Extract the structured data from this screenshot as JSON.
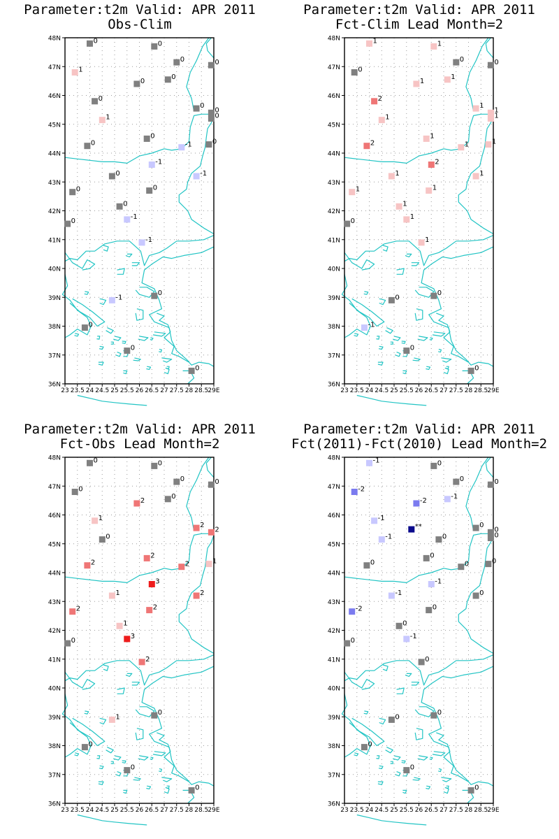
{
  "colors": {
    "coast": "#21c4c4",
    "grid": "#9a9a9a",
    "zero": "#808080",
    "neg1": "#c8c8ff",
    "neg2": "#7b7bef",
    "neg3": "#0a0a8c",
    "pos1": "#f7c4c4",
    "pos2": "#ef7676",
    "pos3": "#ee1c1c"
  },
  "axes": {
    "lat_ticks": [
      "48N",
      "47N",
      "46N",
      "45N",
      "44N",
      "43N",
      "42N",
      "41N",
      "40N",
      "39N",
      "38N",
      "37N",
      "36N"
    ],
    "lon_ticks": [
      "23",
      "23.5",
      "24",
      "24.5",
      "25",
      "25.5",
      "26",
      "26.5",
      "27",
      "27.5",
      "28",
      "28.5",
      "29E"
    ],
    "lat_range": [
      36,
      48
    ],
    "lon_range": [
      23,
      29
    ]
  },
  "panels": [
    {
      "title1": "Parameter:t2m Valid: APR 2011",
      "title2": "Obs-Clim",
      "points": [
        [
          24.0,
          47.8,
          "0"
        ],
        [
          26.6,
          47.7,
          "0"
        ],
        [
          27.5,
          47.15,
          "0"
        ],
        [
          28.9,
          47.05,
          "0"
        ],
        [
          23.4,
          46.8,
          "1"
        ],
        [
          27.15,
          46.55,
          "0"
        ],
        [
          25.9,
          46.4,
          "0"
        ],
        [
          24.2,
          45.8,
          "0"
        ],
        [
          28.3,
          45.55,
          "0"
        ],
        [
          28.9,
          45.4,
          "0"
        ],
        [
          28.9,
          45.2,
          "0"
        ],
        [
          24.5,
          45.15,
          "1"
        ],
        [
          26.3,
          44.5,
          "0"
        ],
        [
          28.8,
          44.3,
          "0"
        ],
        [
          23.9,
          44.25,
          "0"
        ],
        [
          27.7,
          44.2,
          "-1"
        ],
        [
          26.5,
          43.6,
          "-1"
        ],
        [
          28.3,
          43.2,
          "-1"
        ],
        [
          24.9,
          43.2,
          "0"
        ],
        [
          23.3,
          42.65,
          "0"
        ],
        [
          26.4,
          42.7,
          "0"
        ],
        [
          25.2,
          42.15,
          "0"
        ],
        [
          25.5,
          41.7,
          "-1"
        ],
        [
          23.1,
          41.55,
          "0"
        ],
        [
          26.1,
          40.9,
          "-1"
        ],
        [
          24.9,
          38.9,
          "-1"
        ],
        [
          26.6,
          39.05,
          "0"
        ],
        [
          23.8,
          37.95,
          "0"
        ],
        [
          25.5,
          37.15,
          "0"
        ],
        [
          28.1,
          36.45,
          "0"
        ]
      ]
    },
    {
      "title1": "Parameter:t2m Valid: APR 2011",
      "title2": "Fct-Clim Lead Month=2",
      "points": [
        [
          24.0,
          47.8,
          "1"
        ],
        [
          26.6,
          47.7,
          "1"
        ],
        [
          27.5,
          47.15,
          "0"
        ],
        [
          28.9,
          47.05,
          "0"
        ],
        [
          23.4,
          46.8,
          "0"
        ],
        [
          27.15,
          46.55,
          "1"
        ],
        [
          25.9,
          46.4,
          "1"
        ],
        [
          24.2,
          45.8,
          "2"
        ],
        [
          28.3,
          45.55,
          "1"
        ],
        [
          28.9,
          45.4,
          "1"
        ],
        [
          28.9,
          45.2,
          "1"
        ],
        [
          24.5,
          45.15,
          "1"
        ],
        [
          26.3,
          44.5,
          "1"
        ],
        [
          28.8,
          44.3,
          "1"
        ],
        [
          23.9,
          44.25,
          "2"
        ],
        [
          27.7,
          44.2,
          "1"
        ],
        [
          26.5,
          43.6,
          "2"
        ],
        [
          28.3,
          43.2,
          "1"
        ],
        [
          24.9,
          43.2,
          "1"
        ],
        [
          23.3,
          42.65,
          "1"
        ],
        [
          26.4,
          42.7,
          "1"
        ],
        [
          25.2,
          42.15,
          "1"
        ],
        [
          25.5,
          41.7,
          "1"
        ],
        [
          23.1,
          41.55,
          "0"
        ],
        [
          26.1,
          40.9,
          "1"
        ],
        [
          24.9,
          38.9,
          "0"
        ],
        [
          26.6,
          39.05,
          "0"
        ],
        [
          23.8,
          37.95,
          "-1"
        ],
        [
          25.5,
          37.15,
          "0"
        ],
        [
          28.1,
          36.45,
          "0"
        ]
      ]
    },
    {
      "title1": "Parameter:t2m Valid: APR 2011",
      "title2": "Fct-Obs Lead Month=2",
      "points": [
        [
          24.0,
          47.8,
          "0"
        ],
        [
          26.6,
          47.7,
          "0"
        ],
        [
          27.5,
          47.15,
          "0"
        ],
        [
          28.9,
          47.05,
          "0"
        ],
        [
          23.4,
          46.8,
          "0"
        ],
        [
          27.15,
          46.55,
          "0"
        ],
        [
          25.9,
          46.4,
          "2"
        ],
        [
          24.2,
          45.8,
          "1"
        ],
        [
          28.3,
          45.55,
          "2"
        ],
        [
          28.9,
          45.4,
          "2"
        ],
        [
          24.5,
          45.15,
          "0"
        ],
        [
          26.3,
          44.5,
          "2"
        ],
        [
          28.8,
          44.3,
          "1"
        ],
        [
          23.9,
          44.25,
          "2"
        ],
        [
          27.7,
          44.2,
          "2"
        ],
        [
          26.5,
          43.6,
          "3"
        ],
        [
          28.3,
          43.2,
          "2"
        ],
        [
          24.9,
          43.2,
          "1"
        ],
        [
          23.3,
          42.65,
          "2"
        ],
        [
          26.4,
          42.7,
          "2"
        ],
        [
          25.2,
          42.15,
          "1"
        ],
        [
          25.5,
          41.7,
          "3"
        ],
        [
          23.1,
          41.55,
          "0"
        ],
        [
          26.1,
          40.9,
          "2"
        ],
        [
          24.9,
          38.9,
          "1"
        ],
        [
          26.6,
          39.05,
          "0"
        ],
        [
          23.8,
          37.95,
          "0"
        ],
        [
          25.5,
          37.15,
          "0"
        ],
        [
          28.1,
          36.45,
          "0"
        ]
      ]
    },
    {
      "title1": "Parameter:t2m Valid: APR 2011",
      "title2": "Fct(2011)-Fct(2010) Lead Month=2",
      "points": [
        [
          24.0,
          47.8,
          "-1"
        ],
        [
          26.6,
          47.7,
          "0"
        ],
        [
          27.5,
          47.15,
          "0"
        ],
        [
          28.9,
          47.05,
          "0"
        ],
        [
          23.4,
          46.8,
          "-2"
        ],
        [
          27.15,
          46.55,
          "-1"
        ],
        [
          25.9,
          46.4,
          "-2"
        ],
        [
          24.2,
          45.8,
          "-1"
        ],
        [
          28.3,
          45.55,
          "0"
        ],
        [
          28.9,
          45.4,
          "0"
        ],
        [
          28.9,
          45.2,
          "0"
        ],
        [
          24.5,
          45.15,
          "-1"
        ],
        [
          25.7,
          45.5,
          "**"
        ],
        [
          26.8,
          45.15,
          "0"
        ],
        [
          26.3,
          44.5,
          "0"
        ],
        [
          28.8,
          44.3,
          "0"
        ],
        [
          23.9,
          44.25,
          "0"
        ],
        [
          27.7,
          44.2,
          "0"
        ],
        [
          26.5,
          43.6,
          "-1"
        ],
        [
          28.3,
          43.2,
          "0"
        ],
        [
          24.9,
          43.2,
          "-1"
        ],
        [
          23.3,
          42.65,
          "-2"
        ],
        [
          26.4,
          42.7,
          "0"
        ],
        [
          25.2,
          42.15,
          "0"
        ],
        [
          25.5,
          41.7,
          "-1"
        ],
        [
          23.1,
          41.55,
          "0"
        ],
        [
          26.1,
          40.9,
          "0"
        ],
        [
          24.9,
          38.9,
          "0"
        ],
        [
          26.6,
          39.05,
          "0"
        ],
        [
          23.8,
          37.95,
          "0"
        ],
        [
          25.5,
          37.15,
          "0"
        ],
        [
          28.1,
          36.45,
          "0"
        ]
      ]
    }
  ]
}
